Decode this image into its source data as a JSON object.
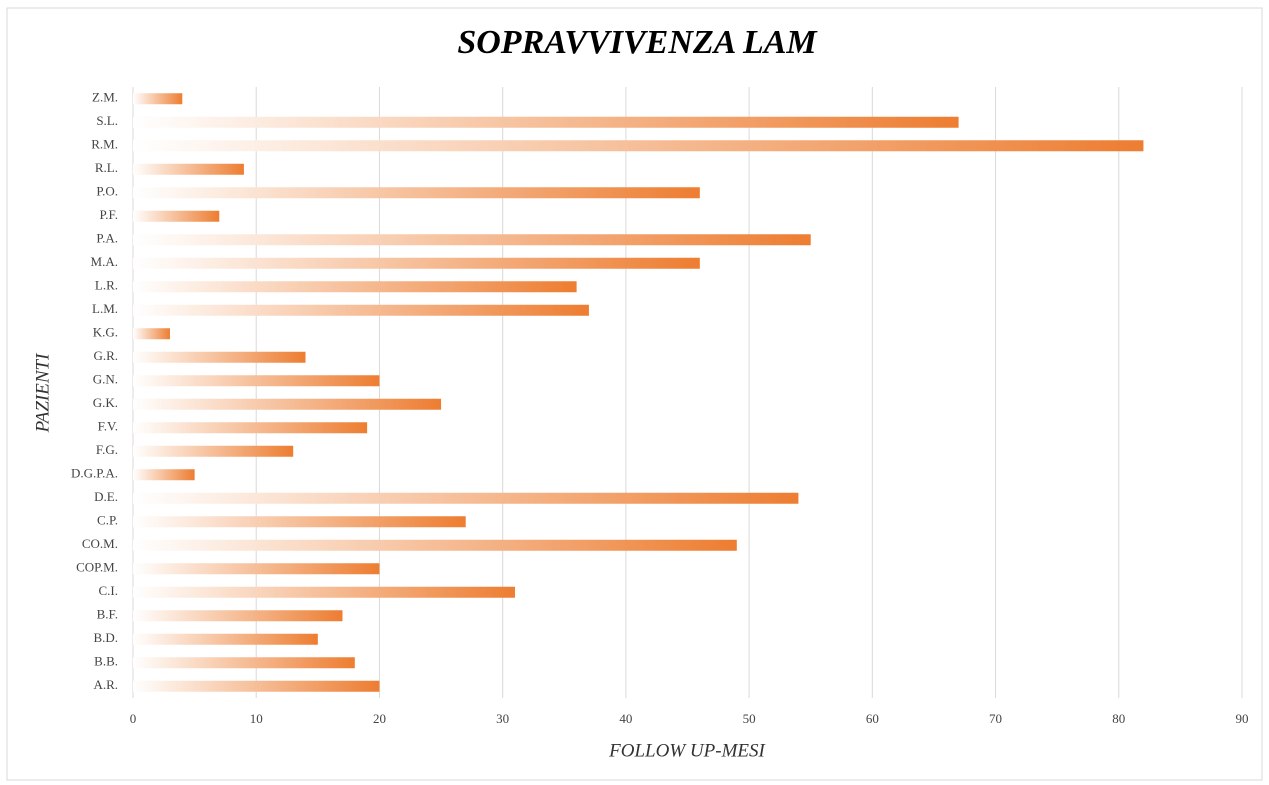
{
  "chart_data": {
    "type": "bar",
    "orientation": "horizontal",
    "title": "SOPRAVVIVENZA LAM",
    "x_label": "FOLLOW UP-MESI",
    "y_label": "PAZIENTI",
    "categories": [
      "A.R.",
      "B.B.",
      "B.D.",
      "B.F.",
      "C.I.",
      "COP.M.",
      "CO.M.",
      "C.P.",
      "D.E.",
      "D.G.P.A.",
      "F.G.",
      "F.V.",
      "G.K.",
      "G.N.",
      "G.R.",
      "K.G.",
      "L.M.",
      "L.R.",
      "M.A.",
      "P.A.",
      "P.F.",
      "P.O.",
      "R.L.",
      "R.M.",
      "S.L.",
      "Z.M."
    ],
    "values": [
      20,
      18,
      15,
      17,
      31,
      20,
      49,
      27,
      54,
      5,
      13,
      19,
      25,
      20,
      14,
      3,
      37,
      36,
      46,
      55,
      7,
      46,
      9,
      82,
      67,
      4
    ],
    "color": "#ed7d31",
    "xlim": [
      0,
      90
    ],
    "xticks": [
      0,
      10,
      20,
      30,
      40,
      50,
      60,
      70,
      80,
      90
    ],
    "grid": true
  }
}
